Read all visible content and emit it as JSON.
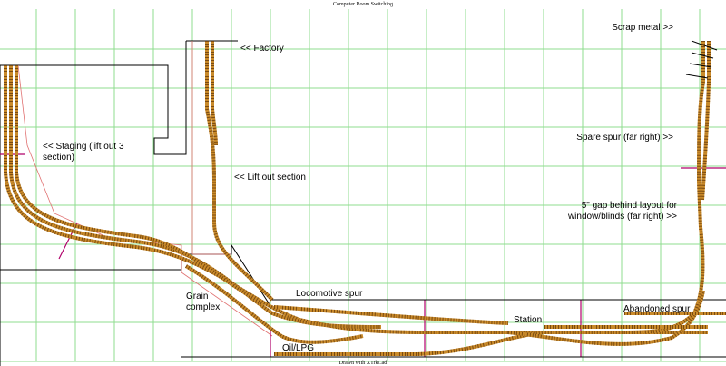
{
  "title": "Computer Room Switching",
  "footer": "Drawn with XTrkCad",
  "labels": {
    "factory": [
      "<< Factory"
    ],
    "staging": [
      "<< Staging (lift out 3",
      "section)"
    ],
    "lift_out": [
      "<< Lift out section"
    ],
    "scrap": [
      "Scrap metal >>"
    ],
    "spare": [
      "Spare spur (far right) >>"
    ],
    "gap": [
      "5\" gap behind layout for",
      "window/blinds (far right) >>"
    ],
    "grain": [
      "Grain",
      "complex"
    ],
    "loco": [
      "Locomotive spur"
    ],
    "oil": [
      "Oil/LPG"
    ],
    "station": [
      "Station"
    ],
    "abandoned": [
      "Abandoned spur"
    ]
  }
}
